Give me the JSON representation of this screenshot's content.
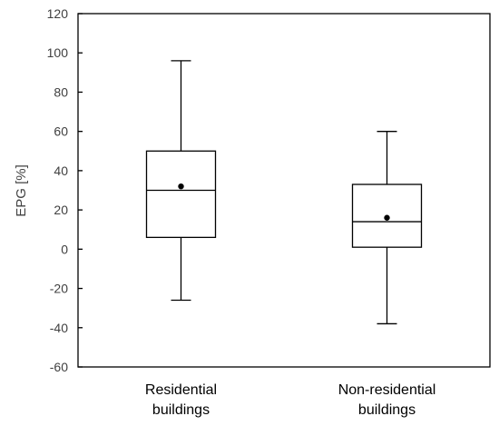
{
  "chart_data": {
    "type": "box",
    "ylabel": "EPG [%]",
    "xlabel": "",
    "ylim": [
      -60,
      120
    ],
    "yticks": [
      -60,
      -40,
      -20,
      0,
      20,
      40,
      60,
      80,
      100,
      120
    ],
    "grid": false,
    "categories": [
      {
        "line1": "Residential",
        "line2": "buildings"
      },
      {
        "line1": "Non-residential",
        "line2": "buildings"
      }
    ],
    "boxes": [
      {
        "whisker_low": -26,
        "q1": 6,
        "median": 30,
        "q3": 50,
        "whisker_high": 96,
        "mean": 32
      },
      {
        "whisker_low": -38,
        "q1": 1,
        "median": 14,
        "q3": 33,
        "whisker_high": 60,
        "mean": 16
      }
    ]
  }
}
